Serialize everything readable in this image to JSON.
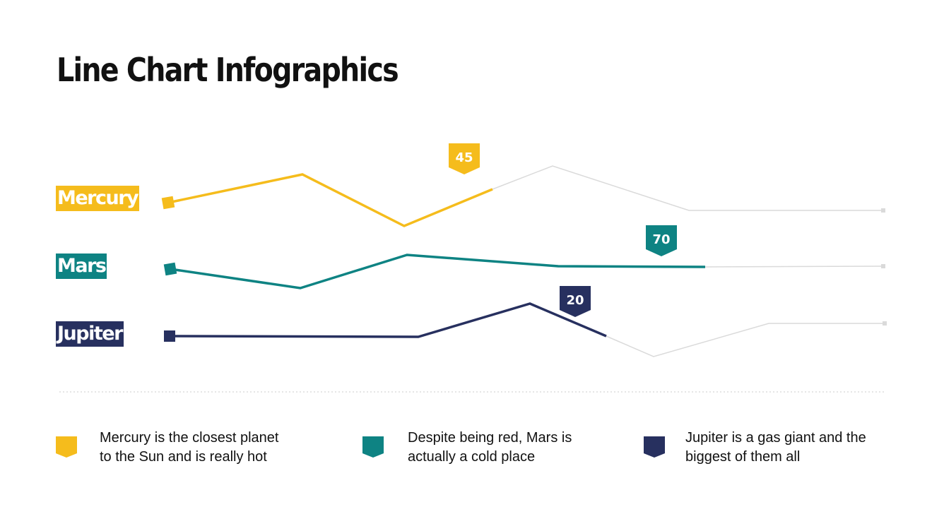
{
  "title": "Line Chart Infographics",
  "colors": {
    "mercury": "#F5BC1C",
    "mars": "#0E8383",
    "jupiter": "#27305F",
    "track": "#DADADA"
  },
  "chart_data": {
    "type": "line",
    "series": [
      {
        "name": "Mercury",
        "label_value": "45",
        "color": "#F5BC1C",
        "description": "Mercury is the closest planet to the Sun and is really hot"
      },
      {
        "name": "Mars",
        "label_value": "70",
        "color": "#0E8383",
        "description": "Despite being red, Mars is actually a cold place"
      },
      {
        "name": "Jupiter",
        "label_value": "20",
        "color": "#27305F",
        "description": "Jupiter is a gas giant and the biggest of them all"
      }
    ]
  },
  "legend": [
    {
      "line1": "Mercury is the closest planet",
      "line2": "to the Sun and is really hot"
    },
    {
      "line1": "Despite being red, Mars is",
      "line2": "actually a cold place"
    },
    {
      "line1": "Jupiter is a gas giant and the",
      "line2": "biggest of them all"
    }
  ]
}
